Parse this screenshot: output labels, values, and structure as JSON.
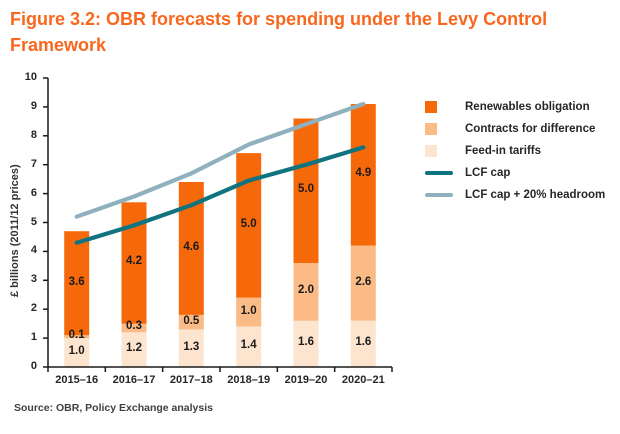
{
  "title": "Figure 3.2: OBR forecasts for spending under the Levy Control Framework",
  "source": "Source: OBR, Policy Exchange analysis",
  "colors": {
    "title_orange": "#F8671D",
    "renewables_obligation": "#F5690B",
    "contracts_for_difference": "#FABB86",
    "feed_in_tariffs": "#FCE4CE",
    "lcf_cap": "#0F7380",
    "lcf_cap_headroom": "#8FB1BE",
    "axis": "#1a1a1a",
    "text": "#262626"
  },
  "chart_data": {
    "type": "bar+line",
    "title": "Figure 3.2: OBR forecasts for spending under the Levy Control Framework",
    "categories": [
      "2015–16",
      "2016–17",
      "2017–18",
      "2018–19",
      "2019–20",
      "2020–21"
    ],
    "series": [
      {
        "name": "Feed-in tariffs",
        "type": "bar",
        "values": [
          1.0,
          1.2,
          1.3,
          1.4,
          1.6,
          1.6
        ],
        "color": "#FCE4CE"
      },
      {
        "name": "Contracts for difference",
        "type": "bar",
        "values": [
          0.1,
          0.3,
          0.5,
          1.0,
          2.0,
          2.6
        ],
        "color": "#FABB86"
      },
      {
        "name": "Renewables obligation",
        "type": "bar",
        "values": [
          3.6,
          4.2,
          4.6,
          5.0,
          5.0,
          4.9
        ],
        "color": "#F5690B"
      },
      {
        "name": "LCF cap",
        "type": "line",
        "values": [
          4.3,
          4.9,
          5.6,
          6.45,
          7.0,
          7.6
        ],
        "color": "#0F7380"
      },
      {
        "name": "LCF cap + 20% headroom",
        "type": "line",
        "values": [
          5.2,
          5.9,
          6.7,
          7.7,
          8.4,
          9.1
        ],
        "color": "#8FB1BE"
      }
    ],
    "stacked": true,
    "bar_labels_shown": true,
    "xlabel": "",
    "ylabel": "£ billions (2011/12 prices)",
    "ylim": [
      0,
      10
    ],
    "yticks": [
      0,
      1,
      2,
      3,
      4,
      5,
      6,
      7,
      8,
      9,
      10
    ],
    "grid": false,
    "legend_position": "right",
    "legend": [
      {
        "label": "Renewables obligation",
        "swatch": "square",
        "color": "#F5690B"
      },
      {
        "label": "Contracts for difference",
        "swatch": "square",
        "color": "#FABB86"
      },
      {
        "label": "Feed-in tariffs",
        "swatch": "square",
        "color": "#FCE4CE"
      },
      {
        "label": "LCF cap",
        "swatch": "line",
        "color": "#0F7380"
      },
      {
        "label": "LCF cap + 20% headroom",
        "swatch": "line",
        "color": "#8FB1BE"
      }
    ]
  }
}
